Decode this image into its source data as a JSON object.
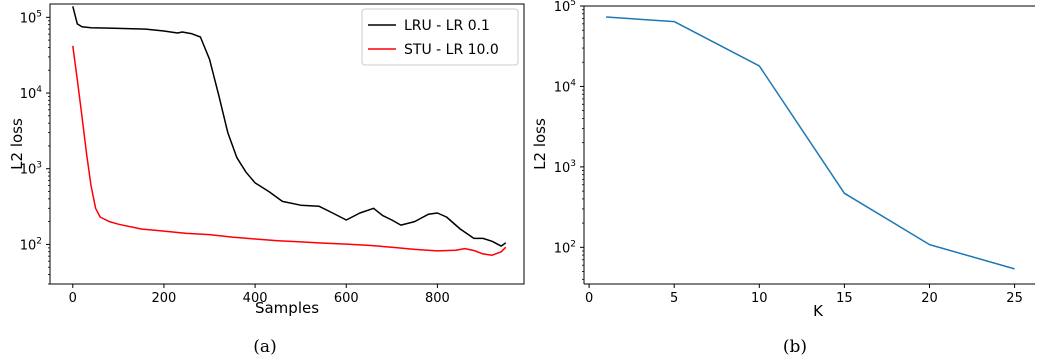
{
  "chart_data": [
    {
      "type": "line",
      "caption": "(a)",
      "xlabel": "Samples",
      "ylabel": "L2 loss",
      "xlim": [
        -50,
        990
      ],
      "ylim": [
        30,
        150000
      ],
      "yscale": "log",
      "xticks": [
        0,
        200,
        400,
        600,
        800
      ],
      "yticks": [
        {
          "base": "10",
          "exp": "2",
          "value": 100
        },
        {
          "base": "10",
          "exp": "3",
          "value": 1000
        },
        {
          "base": "10",
          "exp": "4",
          "value": 10000
        },
        {
          "base": "10",
          "exp": "5",
          "value": 100000
        }
      ],
      "legend_position": "top-right",
      "series": [
        {
          "name": "LRU - LR 0.1",
          "color": "#000000",
          "x": [
            0,
            10,
            20,
            40,
            80,
            120,
            160,
            200,
            230,
            240,
            260,
            280,
            300,
            320,
            340,
            360,
            380,
            400,
            430,
            460,
            500,
            540,
            570,
            600,
            630,
            660,
            680,
            700,
            720,
            750,
            780,
            800,
            820,
            850,
            880,
            900,
            920,
            940,
            950
          ],
          "y": [
            140000,
            82000,
            75000,
            73000,
            72000,
            71000,
            70000,
            66000,
            62000,
            64000,
            61000,
            55000,
            28000,
            9500,
            3000,
            1400,
            900,
            650,
            500,
            370,
            330,
            320,
            260,
            210,
            260,
            300,
            240,
            210,
            180,
            200,
            250,
            260,
            230,
            160,
            120,
            120,
            110,
            95,
            105
          ]
        },
        {
          "name": "STU - LR 10.0",
          "color": "#ff0000",
          "x": [
            0,
            10,
            20,
            30,
            40,
            50,
            60,
            80,
            100,
            150,
            200,
            250,
            300,
            350,
            400,
            450,
            500,
            550,
            600,
            650,
            700,
            750,
            800,
            840,
            860,
            880,
            900,
            920,
            940,
            950
          ],
          "y": [
            42000,
            15000,
            5000,
            1600,
            600,
            300,
            230,
            200,
            185,
            160,
            150,
            140,
            135,
            125,
            118,
            112,
            108,
            104,
            101,
            97,
            92,
            86,
            82,
            84,
            88,
            83,
            75,
            72,
            80,
            92
          ]
        }
      ]
    },
    {
      "type": "line",
      "caption": "(b)",
      "xlabel": "K",
      "ylabel": "L2 loss",
      "xlim": [
        -0.3,
        26.2
      ],
      "ylim": [
        35,
        100000
      ],
      "yscale": "log",
      "xticks": [
        0,
        5,
        10,
        15,
        20,
        25
      ],
      "yticks": [
        {
          "base": "10",
          "exp": "2",
          "value": 100
        },
        {
          "base": "10",
          "exp": "3",
          "value": 1000
        },
        {
          "base": "10",
          "exp": "4",
          "value": 10000
        },
        {
          "base": "10",
          "exp": "5",
          "value": 100000
        }
      ],
      "series": [
        {
          "color": "#1f77b4",
          "x": [
            1,
            5,
            10,
            15,
            20,
            25
          ],
          "y": [
            73000,
            64000,
            18000,
            470,
            108,
            54
          ]
        }
      ]
    }
  ]
}
